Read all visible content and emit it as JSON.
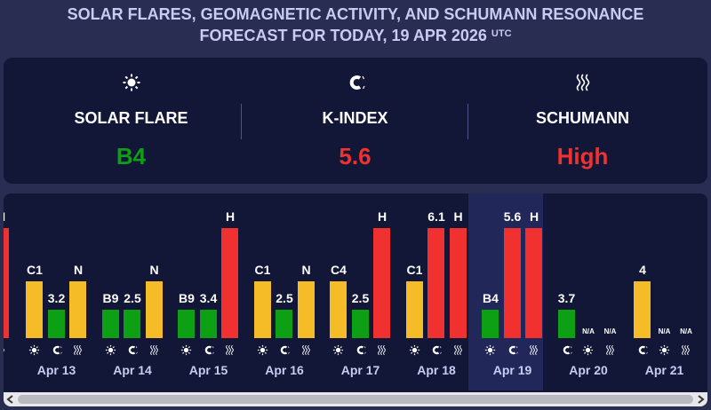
{
  "title": {
    "line1": "SOLAR FLARES, GEOMAGNETIC ACTIVITY, AND SCHUMANN RESONANCE",
    "line2": "FORECAST FOR TODAY, 19 APR 2026",
    "sup": "UTC"
  },
  "summary": {
    "solar_flare": {
      "label": "SOLAR FLARE",
      "value": "B4",
      "color": "#0da014",
      "icon": "sun-icon"
    },
    "k_index": {
      "label": "K-INDEX",
      "value": "5.6",
      "color": "#f13030",
      "icon": "magnet-icon"
    },
    "schumann": {
      "label": "SCHUMANN",
      "value": "High",
      "color": "#f13030",
      "icon": "waves-icon"
    }
  },
  "colors": {
    "low": "#0da014",
    "medium": "#f6bc28",
    "high": "#f13030",
    "background": "#2a2d52",
    "panel": "#121637"
  },
  "chart_data": {
    "type": "bar",
    "series_icons": [
      "sun-icon",
      "magnet-icon",
      "waves-icon"
    ],
    "partial_day": {
      "label": "H",
      "level": "high"
    },
    "days": [
      {
        "date": "Apr 13",
        "bars": [
          {
            "label": "C1",
            "level": "medium"
          },
          {
            "label": "3.2",
            "level": "low"
          },
          {
            "label": "N",
            "level": "medium"
          }
        ]
      },
      {
        "date": "Apr 14",
        "bars": [
          {
            "label": "B9",
            "level": "low"
          },
          {
            "label": "2.5",
            "level": "low"
          },
          {
            "label": "N",
            "level": "medium"
          }
        ]
      },
      {
        "date": "Apr 15",
        "bars": [
          {
            "label": "B9",
            "level": "low"
          },
          {
            "label": "3.4",
            "level": "low"
          },
          {
            "label": "H",
            "level": "high"
          }
        ]
      },
      {
        "date": "Apr 16",
        "bars": [
          {
            "label": "C1",
            "level": "medium"
          },
          {
            "label": "2.5",
            "level": "low"
          },
          {
            "label": "N",
            "level": "medium"
          }
        ]
      },
      {
        "date": "Apr 17",
        "bars": [
          {
            "label": "C4",
            "level": "medium"
          },
          {
            "label": "2.5",
            "level": "low"
          },
          {
            "label": "H",
            "level": "high"
          }
        ]
      },
      {
        "date": "Apr 18",
        "bars": [
          {
            "label": "C1",
            "level": "medium"
          },
          {
            "label": "6.1",
            "level": "high"
          },
          {
            "label": "H",
            "level": "high"
          }
        ]
      },
      {
        "date": "Apr 19",
        "today": true,
        "bars": [
          {
            "label": "B4",
            "level": "low"
          },
          {
            "label": "5.6",
            "level": "high"
          },
          {
            "label": "H",
            "level": "high"
          }
        ]
      },
      {
        "date": "Apr 20",
        "icons": [
          "magnet-icon",
          "sun-icon",
          "waves-icon"
        ],
        "bars": [
          {
            "label": "3.7",
            "level": "low"
          },
          {
            "label": "N/A",
            "level": "none"
          },
          {
            "label": "N/A",
            "level": "none"
          }
        ]
      },
      {
        "date": "Apr 21",
        "icons": [
          "magnet-icon",
          "sun-icon",
          "waves-icon"
        ],
        "bars": [
          {
            "label": "4",
            "level": "medium"
          },
          {
            "label": "N/A",
            "level": "none"
          },
          {
            "label": "N/A",
            "level": "none"
          }
        ]
      }
    ]
  }
}
